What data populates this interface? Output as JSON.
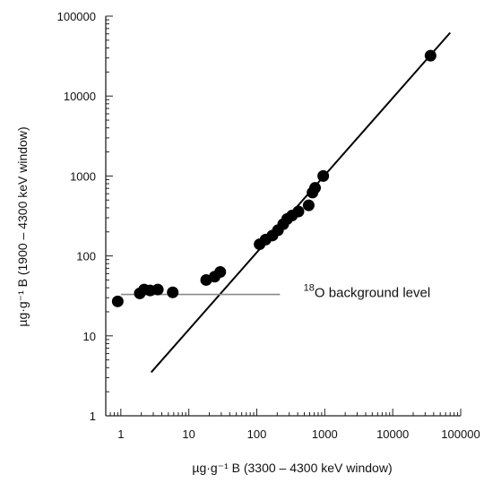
{
  "chart_data": {
    "type": "scatter",
    "xscale": "log",
    "yscale": "log",
    "xlim": [
      0.6,
      100000
    ],
    "ylim": [
      1,
      100000
    ],
    "xlabel": "µg·g⁻¹ B (3300 – 4300 keV window)",
    "ylabel": "µg·g⁻¹ B (1900 – 4300 keV window)",
    "x_ticks": [
      1,
      10,
      100,
      1000,
      10000,
      100000
    ],
    "x_tick_labels": [
      "1",
      "10",
      "100",
      "1000",
      "10000",
      "100000"
    ],
    "y_ticks": [
      1,
      10,
      100,
      1000,
      10000,
      100000
    ],
    "y_tick_labels": [
      "1",
      "10",
      "100",
      "1000",
      "10000",
      "100000"
    ],
    "grid": false,
    "legend": "none",
    "colors": {
      "points": "#000000",
      "fit_line": "#000000",
      "background_line": "#8a8a8a"
    },
    "series": [
      {
        "kind": "points",
        "x": [
          0.9,
          1.9,
          2.2,
          2.7,
          3.5,
          5.8,
          18,
          24,
          29,
          110,
          135,
          170,
          205,
          245,
          280,
          330,
          410,
          580,
          660,
          720,
          950,
          36000
        ],
        "y": [
          27,
          34,
          38,
          37,
          38,
          35,
          50,
          55,
          63,
          140,
          160,
          180,
          210,
          250,
          290,
          320,
          360,
          430,
          620,
          710,
          1000,
          32000
        ]
      },
      {
        "kind": "fit_line",
        "x": [
          2.8,
          70000
        ],
        "y": [
          3.5,
          62000
        ]
      },
      {
        "kind": "background_line",
        "x": [
          1,
          220
        ],
        "y": [
          33,
          33
        ]
      }
    ],
    "annotations": [
      {
        "superscript": "18",
        "text": "O background level",
        "x": 250,
        "y": 33
      }
    ]
  }
}
